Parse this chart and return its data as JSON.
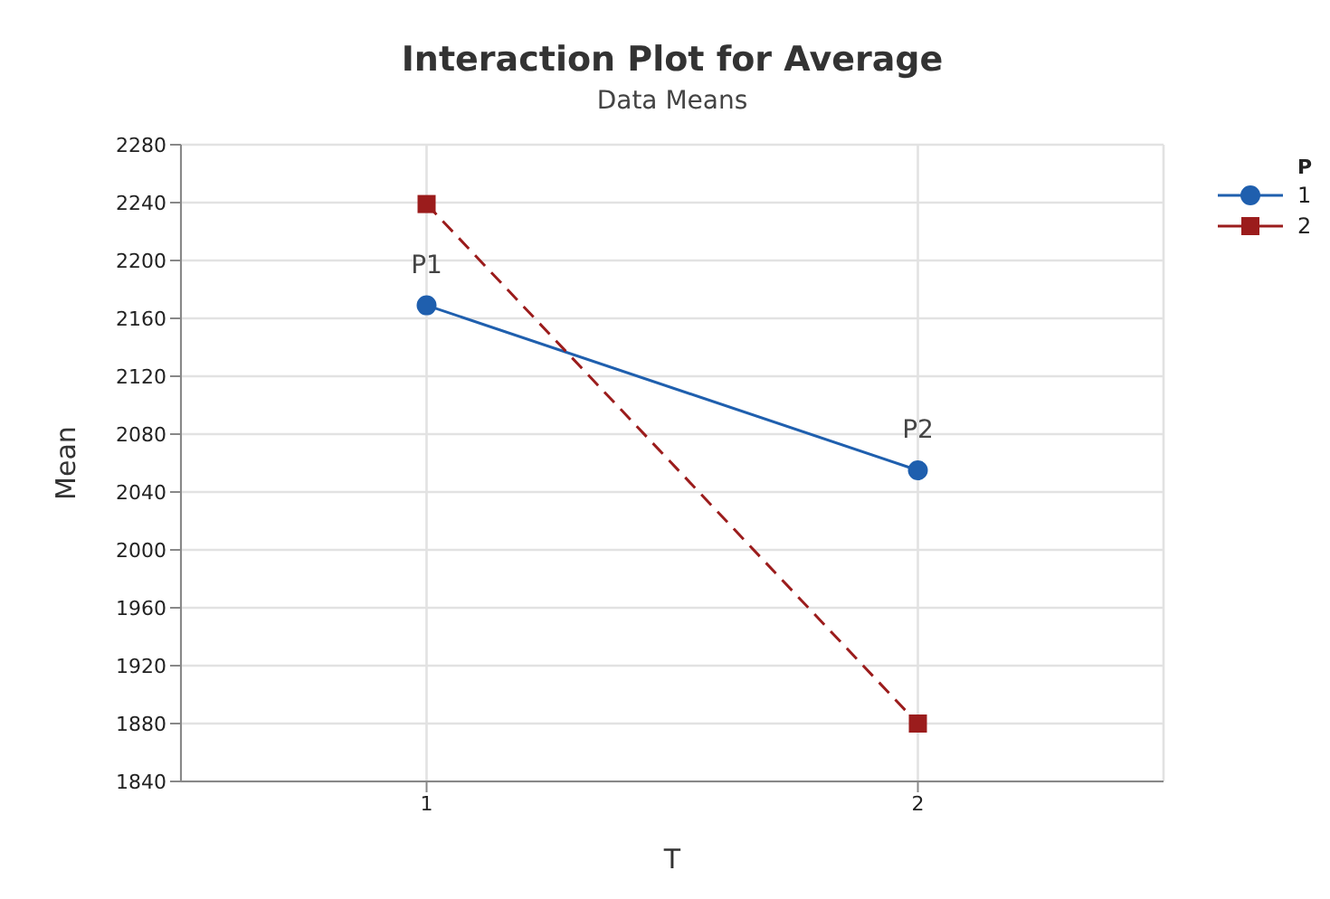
{
  "chart_data": {
    "type": "line",
    "title": "Interaction Plot for Average",
    "subtitle": "Data Means",
    "xlabel": "T",
    "ylabel": "Mean",
    "legend_title": "P",
    "x": [
      1,
      2
    ],
    "xlim": [
      0.5,
      2.5
    ],
    "xticks": [
      1,
      2
    ],
    "ylim": [
      1840,
      2280
    ],
    "yticks": [
      1840,
      1880,
      1920,
      1960,
      2000,
      2040,
      2080,
      2120,
      2160,
      2200,
      2240,
      2280
    ],
    "series": [
      {
        "name": "1",
        "color": "#1f5fae",
        "values": [
          2169,
          2055
        ],
        "marker": "circle",
        "line_style": "solid"
      },
      {
        "name": "2",
        "color": "#9b1c1c",
        "values": [
          2239,
          1880
        ],
        "marker": "square",
        "line_style": "dashed"
      }
    ],
    "annotations": [
      {
        "text": "P1",
        "x": 1,
        "y": 2169
      },
      {
        "text": "P2",
        "x": 2,
        "y": 2055
      }
    ],
    "grid": true,
    "legend": "top right"
  }
}
